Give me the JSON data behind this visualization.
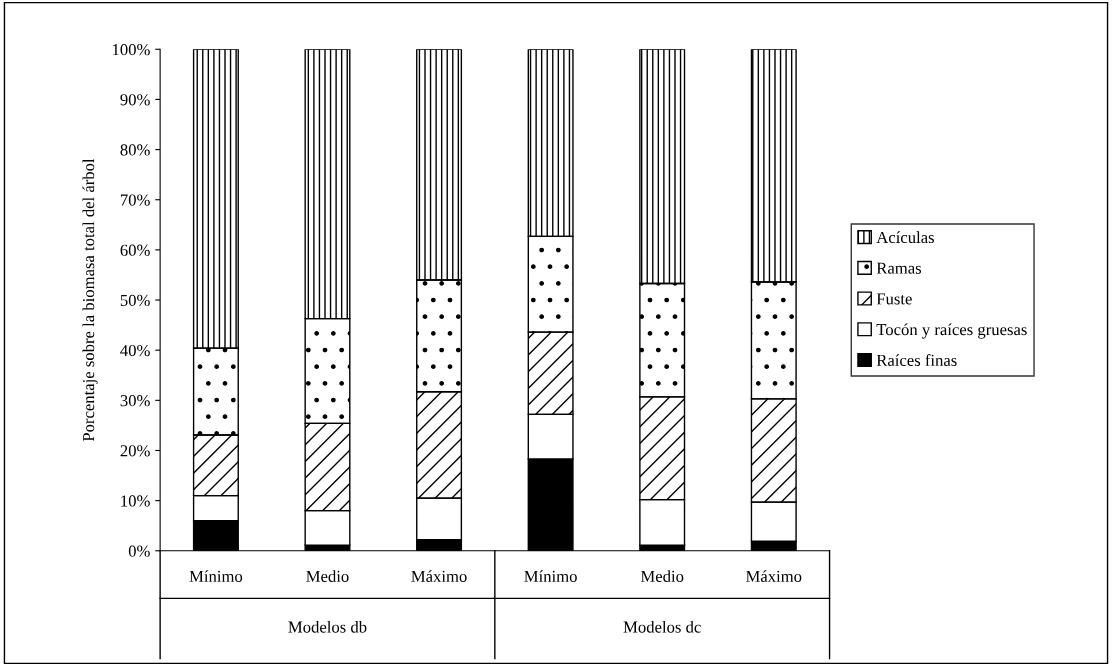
{
  "chart_data": {
    "type": "bar",
    "stacked": true,
    "ylabel": "Porcentaje sobre la biomasa total del árbol",
    "categories": [
      "Mínimo",
      "Medio",
      "Máximo",
      "Mínimo",
      "Medio",
      "Máximo"
    ],
    "series": [
      {
        "name": "Raíces finas",
        "color": "#000000",
        "values": [
          6.0,
          1.1,
          2.2,
          18.3,
          1.1,
          1.9
        ]
      },
      {
        "name": "Tocón y raíces gruesas",
        "color": "#ffffff",
        "values": [
          5.0,
          6.9,
          8.3,
          8.9,
          9.1,
          7.8
        ]
      },
      {
        "name": "Fuste",
        "color": "#000000",
        "values": [
          12.1,
          17.4,
          21.2,
          16.4,
          20.5,
          20.6
        ]
      },
      {
        "name": "Ramas",
        "color": "#000000",
        "values": [
          17.3,
          20.9,
          22.3,
          19.1,
          22.6,
          23.3
        ]
      },
      {
        "name": "Acículas",
        "color": "#000000",
        "values": [
          59.6,
          53.7,
          46.0,
          37.3,
          46.7,
          46.4
        ]
      }
    ],
    "ylim": [
      0,
      100
    ],
    "yticks": [
      {
        "value": 0,
        "label": "0%"
      },
      {
        "value": 10,
        "label": "10%"
      },
      {
        "value": 20,
        "label": "20%"
      },
      {
        "value": 30,
        "label": "30%"
      },
      {
        "value": 40,
        "label": "40%"
      },
      {
        "value": 50,
        "label": "50%"
      },
      {
        "value": 60,
        "label": "60%"
      },
      {
        "value": 70,
        "label": "70%"
      },
      {
        "value": 80,
        "label": "80%"
      },
      {
        "value": 90,
        "label": "90%"
      },
      {
        "value": 100,
        "label": "100%"
      }
    ],
    "annotations": [
      "Modelos db",
      "Modelos dc"
    ],
    "grid": false,
    "legend": "right"
  }
}
